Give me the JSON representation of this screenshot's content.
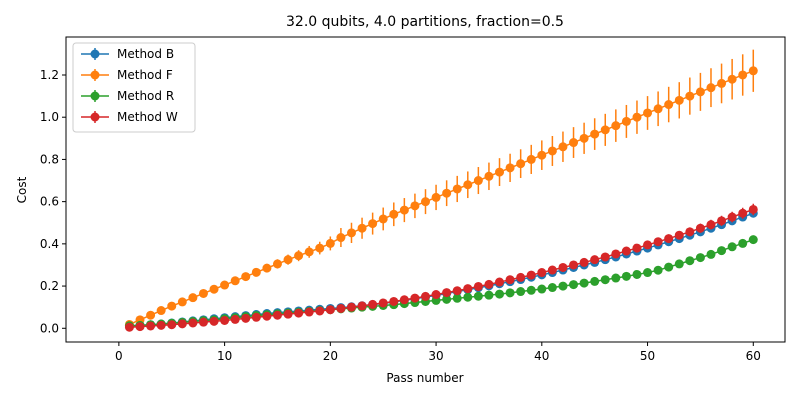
{
  "chart_data": {
    "type": "line",
    "title": "32.0 qubits, 4.0 partitions, fraction=0.5",
    "xlabel": "Pass number",
    "ylabel": "Cost",
    "xlim": [
      -5,
      63
    ],
    "ylim": [
      -0.065,
      1.38
    ],
    "xticks": [
      0,
      10,
      20,
      30,
      40,
      50,
      60
    ],
    "yticks": [
      0.0,
      0.2,
      0.4,
      0.6,
      0.8,
      1.0,
      1.2
    ],
    "ytick_labels": [
      "0.0",
      "0.2",
      "0.4",
      "0.6",
      "0.8",
      "1.0",
      "1.2"
    ],
    "legend_position": "upper-left",
    "x": [
      1,
      2,
      3,
      4,
      5,
      6,
      7,
      8,
      9,
      10,
      11,
      12,
      13,
      14,
      15,
      16,
      17,
      18,
      19,
      20,
      21,
      22,
      23,
      24,
      25,
      26,
      27,
      28,
      29,
      30,
      31,
      32,
      33,
      34,
      35,
      36,
      37,
      38,
      39,
      40,
      41,
      42,
      43,
      44,
      45,
      46,
      47,
      48,
      49,
      50,
      51,
      52,
      53,
      54,
      55,
      56,
      57,
      58,
      59,
      60
    ],
    "series": [
      {
        "name": "Method B",
        "color": "#1f77b4",
        "values": [
          0.012,
          0.014,
          0.017,
          0.02,
          0.025,
          0.03,
          0.035,
          0.04,
          0.045,
          0.05,
          0.055,
          0.06,
          0.065,
          0.07,
          0.074,
          0.078,
          0.082,
          0.086,
          0.09,
          0.094,
          0.098,
          0.102,
          0.107,
          0.112,
          0.118,
          0.125,
          0.132,
          0.14,
          0.148,
          0.156,
          0.165,
          0.174,
          0.183,
          0.192,
          0.201,
          0.211,
          0.221,
          0.231,
          0.242,
          0.253,
          0.264,
          0.276,
          0.288,
          0.3,
          0.312,
          0.325,
          0.338,
          0.352,
          0.366,
          0.38,
          0.395,
          0.41,
          0.425,
          0.441,
          0.457,
          0.474,
          0.491,
          0.509,
          0.527,
          0.545
        ],
        "errors": [
          0.003,
          0.003,
          0.003,
          0.004,
          0.004,
          0.004,
          0.005,
          0.005,
          0.005,
          0.005,
          0.006,
          0.006,
          0.006,
          0.006,
          0.007,
          0.007,
          0.007,
          0.007,
          0.008,
          0.008,
          0.008,
          0.008,
          0.009,
          0.009,
          0.009,
          0.009,
          0.01,
          0.01,
          0.01,
          0.01,
          0.011,
          0.011,
          0.011,
          0.011,
          0.012,
          0.012,
          0.012,
          0.012,
          0.013,
          0.013,
          0.013,
          0.013,
          0.014,
          0.014,
          0.014,
          0.014,
          0.015,
          0.015,
          0.015,
          0.015,
          0.016,
          0.016,
          0.016,
          0.016,
          0.017,
          0.017,
          0.017,
          0.017,
          0.018,
          0.018
        ]
      },
      {
        "name": "Method F",
        "color": "#ff7f0e",
        "values": [
          0.018,
          0.04,
          0.062,
          0.084,
          0.105,
          0.125,
          0.145,
          0.165,
          0.185,
          0.205,
          0.225,
          0.245,
          0.265,
          0.285,
          0.305,
          0.325,
          0.344,
          0.362,
          0.38,
          0.402,
          0.43,
          0.452,
          0.474,
          0.496,
          0.518,
          0.54,
          0.56,
          0.58,
          0.6,
          0.62,
          0.64,
          0.66,
          0.68,
          0.7,
          0.72,
          0.74,
          0.76,
          0.78,
          0.8,
          0.82,
          0.84,
          0.86,
          0.88,
          0.9,
          0.92,
          0.94,
          0.96,
          0.98,
          1.0,
          1.02,
          1.04,
          1.06,
          1.08,
          1.1,
          1.12,
          1.14,
          1.16,
          1.18,
          1.2,
          1.22
        ],
        "errors": [
          0.005,
          0.007,
          0.009,
          0.01,
          0.011,
          0.012,
          0.013,
          0.014,
          0.015,
          0.016,
          0.017,
          0.018,
          0.019,
          0.02,
          0.022,
          0.024,
          0.026,
          0.028,
          0.03,
          0.033,
          0.045,
          0.048,
          0.05,
          0.052,
          0.054,
          0.056,
          0.057,
          0.058,
          0.059,
          0.06,
          0.061,
          0.062,
          0.063,
          0.064,
          0.065,
          0.066,
          0.067,
          0.068,
          0.069,
          0.07,
          0.071,
          0.072,
          0.073,
          0.074,
          0.075,
          0.076,
          0.077,
          0.078,
          0.079,
          0.08,
          0.082,
          0.084,
          0.086,
          0.088,
          0.09,
          0.092,
          0.094,
          0.096,
          0.098,
          0.1
        ]
      },
      {
        "name": "Method R",
        "color": "#2ca02c",
        "values": [
          0.012,
          0.014,
          0.017,
          0.02,
          0.024,
          0.028,
          0.032,
          0.036,
          0.04,
          0.045,
          0.05,
          0.055,
          0.06,
          0.064,
          0.068,
          0.072,
          0.076,
          0.08,
          0.084,
          0.088,
          0.092,
          0.096,
          0.1,
          0.104,
          0.108,
          0.112,
          0.117,
          0.122,
          0.127,
          0.132,
          0.137,
          0.142,
          0.147,
          0.152,
          0.157,
          0.162,
          0.168,
          0.174,
          0.18,
          0.186,
          0.193,
          0.2,
          0.207,
          0.214,
          0.222,
          0.23,
          0.238,
          0.246,
          0.255,
          0.264,
          0.275,
          0.29,
          0.305,
          0.32,
          0.335,
          0.35,
          0.368,
          0.386,
          0.402,
          0.42
        ],
        "errors": [
          0.002,
          0.002,
          0.002,
          0.002,
          0.003,
          0.003,
          0.003,
          0.003,
          0.003,
          0.003,
          0.004,
          0.004,
          0.004,
          0.004,
          0.004,
          0.004,
          0.005,
          0.005,
          0.005,
          0.005,
          0.005,
          0.005,
          0.006,
          0.006,
          0.006,
          0.006,
          0.006,
          0.006,
          0.007,
          0.007,
          0.007,
          0.007,
          0.007,
          0.007,
          0.008,
          0.008,
          0.008,
          0.008,
          0.008,
          0.008,
          0.009,
          0.009,
          0.009,
          0.009,
          0.009,
          0.009,
          0.01,
          0.01,
          0.01,
          0.01,
          0.01,
          0.01,
          0.011,
          0.011,
          0.011,
          0.011,
          0.011,
          0.011,
          0.012,
          0.012
        ]
      },
      {
        "name": "Method W",
        "color": "#d62728",
        "values": [
          0.005,
          0.008,
          0.011,
          0.014,
          0.017,
          0.021,
          0.025,
          0.029,
          0.033,
          0.037,
          0.042,
          0.047,
          0.052,
          0.057,
          0.062,
          0.067,
          0.072,
          0.077,
          0.082,
          0.088,
          0.094,
          0.1,
          0.106,
          0.113,
          0.12,
          0.127,
          0.135,
          0.143,
          0.151,
          0.16,
          0.169,
          0.178,
          0.188,
          0.198,
          0.208,
          0.219,
          0.23,
          0.241,
          0.252,
          0.264,
          0.276,
          0.288,
          0.3,
          0.312,
          0.325,
          0.338,
          0.352,
          0.366,
          0.38,
          0.395,
          0.41,
          0.425,
          0.441,
          0.457,
          0.474,
          0.491,
          0.509,
          0.527,
          0.545,
          0.563
        ],
        "errors": [
          0.003,
          0.003,
          0.003,
          0.004,
          0.004,
          0.004,
          0.005,
          0.005,
          0.005,
          0.005,
          0.006,
          0.006,
          0.006,
          0.006,
          0.007,
          0.007,
          0.007,
          0.007,
          0.008,
          0.008,
          0.008,
          0.009,
          0.009,
          0.009,
          0.01,
          0.01,
          0.01,
          0.011,
          0.011,
          0.011,
          0.012,
          0.012,
          0.012,
          0.013,
          0.013,
          0.013,
          0.014,
          0.014,
          0.014,
          0.015,
          0.015,
          0.015,
          0.016,
          0.016,
          0.016,
          0.017,
          0.017,
          0.018,
          0.018,
          0.019,
          0.019,
          0.02,
          0.02,
          0.021,
          0.022,
          0.023,
          0.024,
          0.025,
          0.026,
          0.027
        ]
      }
    ]
  }
}
